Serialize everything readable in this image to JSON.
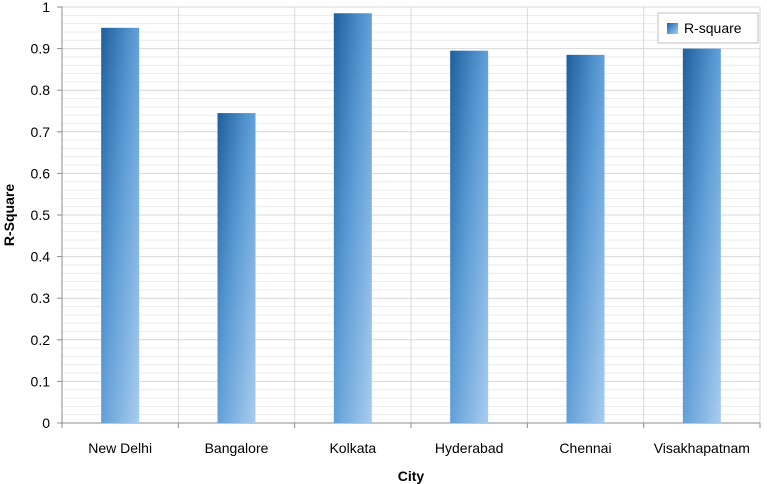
{
  "chart_data": {
    "type": "bar",
    "categories": [
      "New Delhi",
      "Bangalore",
      "Kolkata",
      "Hyderabad",
      "Chennai",
      "Visakhapatnam"
    ],
    "series": [
      {
        "name": "R-square",
        "values": [
          0.95,
          0.745,
          0.985,
          0.895,
          0.885,
          0.9
        ]
      }
    ],
    "xlabel": "City",
    "ylabel": "R-Square",
    "ylim": [
      0,
      1
    ],
    "yticks": [
      "0",
      "0.1",
      "0.2",
      "0.3",
      "0.4",
      "0.5",
      "0.6",
      "0.7",
      "0.8",
      "0.9",
      "1"
    ],
    "grid": true,
    "minor_grid": true,
    "legend_position": "top-right",
    "colors": {
      "bar_dark": "#1f5f9e",
      "bar_mid": "#5b9bd5",
      "bar_light": "#a9cdef",
      "grid": "#d9d9d9",
      "minor_grid": "#ececec"
    }
  }
}
